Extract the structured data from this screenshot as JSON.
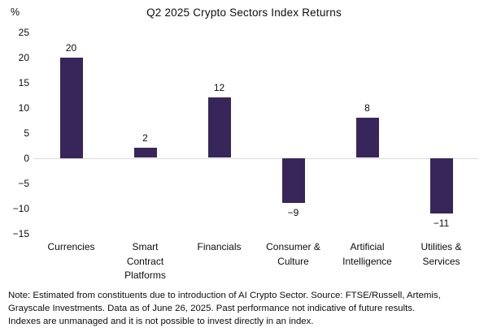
{
  "chart_data": {
    "type": "bar",
    "title": "Q2 2025 Crypto Sectors Index Returns",
    "y_unit": "%",
    "categories": [
      "Currencies",
      "Smart Contract Platforms",
      "Financials",
      "Consumer & Culture",
      "Artificial Intelligence",
      "Utilities & Services"
    ],
    "category_label_lines": [
      [
        "Currencies"
      ],
      [
        "Smart",
        "Contract",
        "Platforms"
      ],
      [
        "Financials"
      ],
      [
        "Consumer &",
        "Culture"
      ],
      [
        "Artificial",
        "Intelligence"
      ],
      [
        "Utilities &",
        "Services"
      ]
    ],
    "values": [
      20,
      2,
      12,
      -9,
      8,
      -11
    ],
    "data_labels": [
      "20",
      "2",
      "12",
      "−9",
      "8",
      "−11"
    ],
    "y_ticks": [
      25,
      20,
      15,
      10,
      5,
      0,
      -5,
      -10,
      -15
    ],
    "y_tick_labels": [
      "25",
      "20",
      "15",
      "10",
      "5",
      "0",
      "−5",
      "−10",
      "−15"
    ],
    "ylim": [
      -15,
      25
    ],
    "xlabel": "",
    "ylabel": "%",
    "grid": "zero-line-only",
    "legend": "none",
    "bar_color": "#38265a",
    "zero_line_color": "#dcdcdc",
    "text_color": "#0d0d0d",
    "background_color": "#ffffff"
  },
  "note": {
    "lines": [
      "Note: Estimated from constituents due to introduction of AI Crypto Sector. Source: FTSE/Russell, Artemis,",
      "Grayscale Investments. Data as of June 26, 2025. Past performance not indicative of future results.",
      "Indexes are unmanaged and it is not possible to invest directly in an index."
    ]
  }
}
